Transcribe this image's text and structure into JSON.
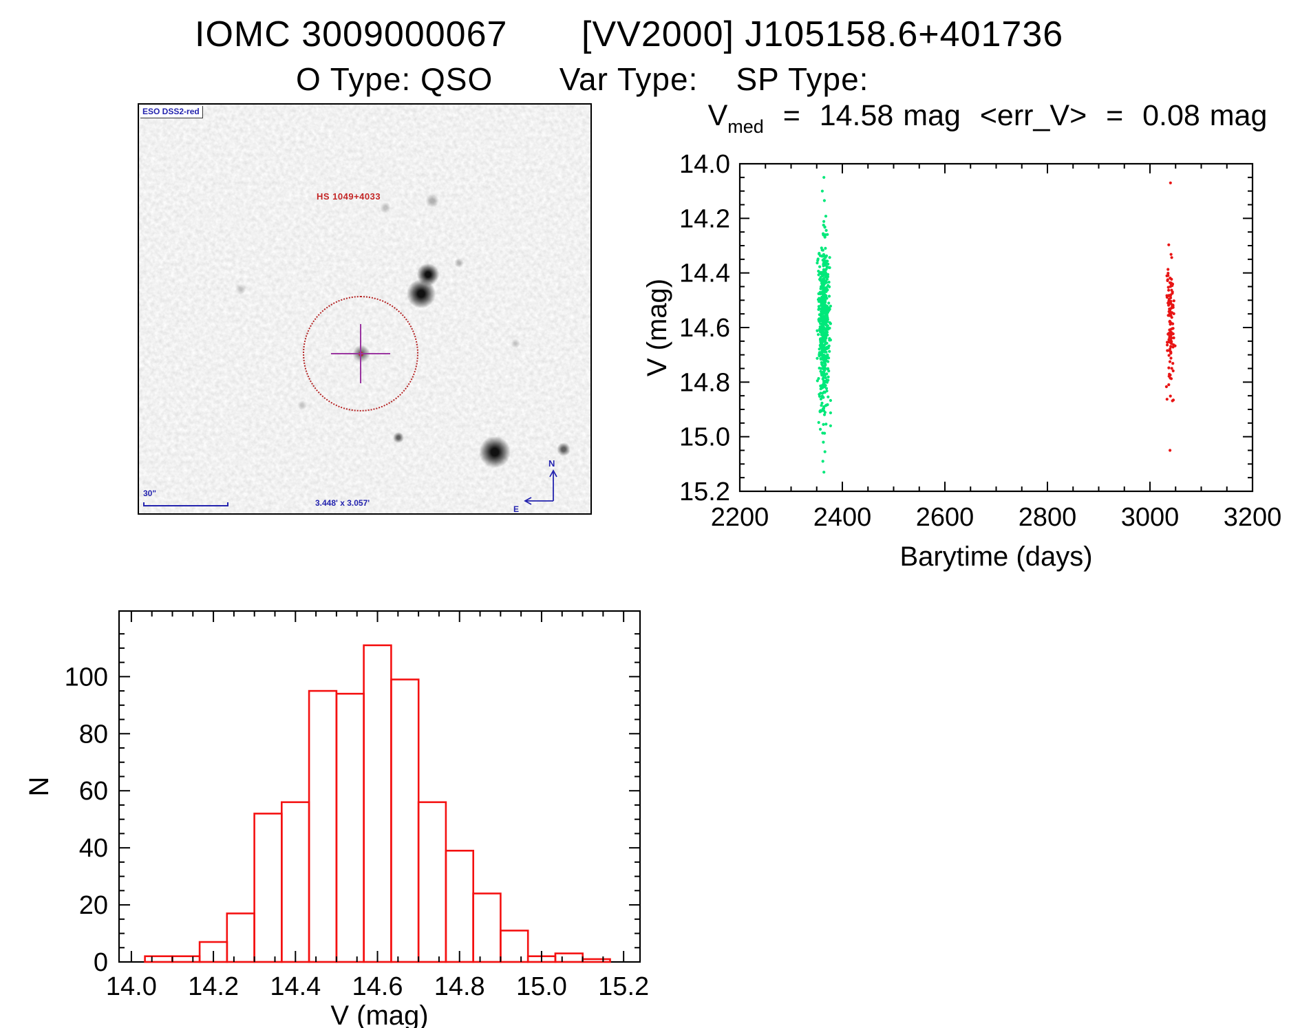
{
  "page": {
    "title_left": "IOMC 3009000067",
    "title_right": "[VV2000] J105158.6+401736",
    "subtitle": "O Type: QSO       Var Type:    SP Type:"
  },
  "finding_chart": {
    "survey_label": "ESO DSS2-red",
    "target_label": "HS 1049+4033",
    "scale_label": "30\"",
    "fov_label": "3.448' x 3.057'",
    "compass_north": "N",
    "compass_east": "E",
    "annotation_blue": "#2323AE",
    "annotation_red": "#C32525",
    "circle_color": "#B42222",
    "crosshair_color": "#9A35A0"
  },
  "chart_data": [
    {
      "id": "lightcurve",
      "type": "scatter",
      "title_parts": {
        "v": "V",
        "sub": "med",
        "rest": "  =  14.58 mag  <err_V>  =  0.08 mag"
      },
      "v_med_mag": 14.58,
      "mean_err_v_mag": 0.08,
      "xlabel": "Barytime (days)",
      "ylabel": "V (mag)",
      "xlim": [
        2200,
        3200
      ],
      "ylim": [
        14.0,
        15.2
      ],
      "y_axis_inverted_magnitudes": true,
      "grid": false,
      "legend": false,
      "x_ticks": [
        2200,
        2400,
        2600,
        2800,
        3000,
        3200
      ],
      "x_tick_labels": [
        "2200",
        "2400",
        "2600",
        "2800",
        "3000",
        "3200"
      ],
      "y_ticks": [
        14.0,
        14.2,
        14.4,
        14.6,
        14.8,
        15.0,
        15.2
      ],
      "y_tick_labels": [
        "14.0",
        "14.2",
        "14.4",
        "14.6",
        "14.8",
        "15.0",
        "15.2"
      ],
      "x_minor_step": 50,
      "y_minor_step": 0.05,
      "marker_radius_px": 2.1,
      "series": [
        {
          "name": "season-1-green",
          "color": "#00E87A",
          "n": 540,
          "x_center": 2364,
          "x_sigma_days": 5,
          "x_halfwidth_days": 13,
          "v_mean": 14.585,
          "v_sigma": 0.158,
          "v_clip": [
            14.19,
            15.0
          ],
          "extra_points": [
            [
              2364,
              14.05
            ],
            [
              2361,
              14.1
            ],
            [
              2365,
              14.135
            ],
            [
              2363,
              15.02
            ],
            [
              2366,
              15.055
            ],
            [
              2362,
              15.09
            ],
            [
              2364,
              15.13
            ]
          ]
        },
        {
          "name": "season-2-red",
          "color": "#E81515",
          "n": 130,
          "x_center": 3040,
          "x_sigma_days": 3.5,
          "x_halfwidth_days": 9,
          "v_mean": 14.6,
          "v_sigma": 0.13,
          "v_clip": [
            14.27,
            14.96
          ],
          "extra_points": [
            [
              3040,
              14.07
            ],
            [
              3039,
              15.05
            ]
          ]
        }
      ]
    },
    {
      "id": "histogram",
      "type": "bar",
      "xlabel": "V (mag)",
      "ylabel": "N",
      "xlim": [
        13.97,
        15.24
      ],
      "ylim": [
        0,
        123
      ],
      "x_ticks": [
        14.0,
        14.2,
        14.4,
        14.6,
        14.8,
        15.0,
        15.2
      ],
      "x_tick_labels": [
        "14.0",
        "14.2",
        "14.4",
        "14.6",
        "14.8",
        "15.0",
        "15.2"
      ],
      "y_ticks": [
        0,
        20,
        40,
        60,
        80,
        100
      ],
      "y_tick_labels": [
        "0",
        "20",
        "40",
        "60",
        "80",
        "100"
      ],
      "x_minor_step": 0.05,
      "y_minor_step": 5,
      "bin_start": 14.033,
      "bin_width": 0.0667,
      "counts": [
        2,
        2,
        7,
        17,
        52,
        56,
        95,
        94,
        111,
        99,
        56,
        39,
        24,
        11,
        2,
        3,
        1
      ],
      "bar_color": "#F41111"
    }
  ]
}
